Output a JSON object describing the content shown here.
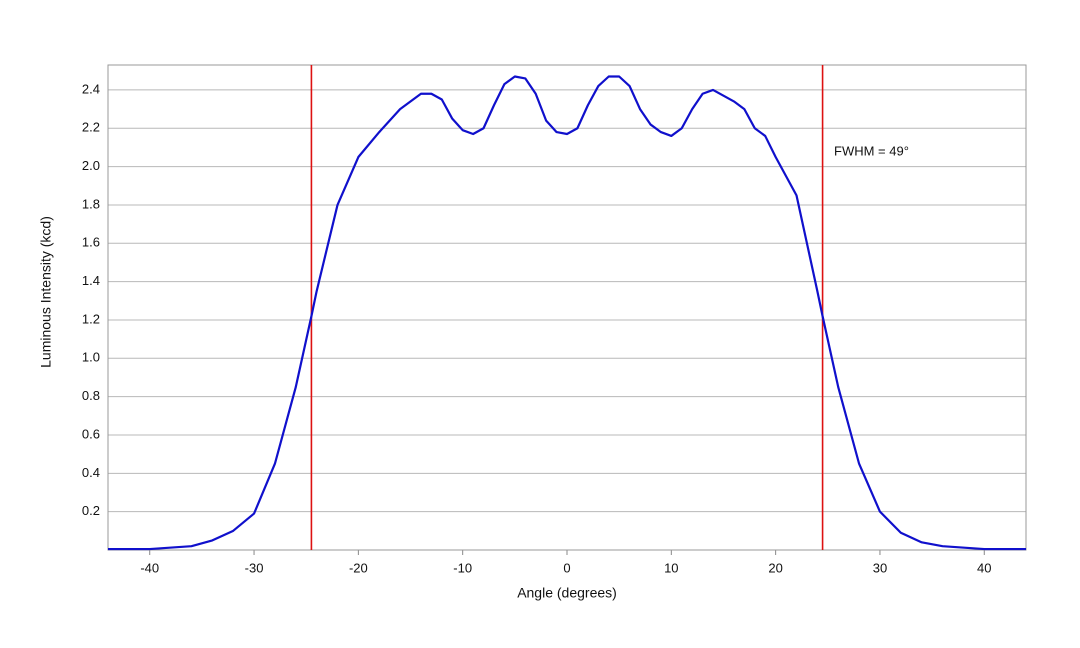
{
  "chart_data": {
    "type": "line",
    "xlabel": "Angle (degrees)",
    "ylabel": "Luminous Intensity (kcd)",
    "annotation": "FWHM = 49°",
    "x": [
      -44,
      -40,
      -36,
      -34,
      -32,
      -30,
      -28,
      -26,
      -24.5,
      -24,
      -22,
      -20,
      -18,
      -16,
      -14,
      -13,
      -12,
      -11,
      -10,
      -9,
      -8,
      -7,
      -6,
      -5,
      -4,
      -3,
      -2,
      -1,
      0,
      1,
      2,
      3,
      4,
      5,
      6,
      7,
      8,
      9,
      10,
      11,
      12,
      13,
      14,
      15,
      16,
      17,
      18,
      19,
      20,
      22,
      24,
      24.5,
      26,
      28,
      30,
      32,
      34,
      36,
      40,
      44
    ],
    "series": [
      {
        "color": "#1010cc",
        "values": [
          0.005,
          0.005,
          0.02,
          0.05,
          0.1,
          0.19,
          0.45,
          0.85,
          1.22,
          1.35,
          1.8,
          2.05,
          2.18,
          2.3,
          2.38,
          2.38,
          2.35,
          2.25,
          2.19,
          2.17,
          2.2,
          2.32,
          2.43,
          2.47,
          2.46,
          2.38,
          2.24,
          2.18,
          2.17,
          2.2,
          2.32,
          2.42,
          2.47,
          2.47,
          2.42,
          2.3,
          2.22,
          2.18,
          2.16,
          2.2,
          2.3,
          2.38,
          2.4,
          2.37,
          2.34,
          2.3,
          2.2,
          2.16,
          2.05,
          1.85,
          1.35,
          1.22,
          0.85,
          0.45,
          0.2,
          0.09,
          0.04,
          0.02,
          0.005,
          0.005
        ]
      }
    ],
    "vlines": [
      -24.5,
      24.5
    ],
    "vline_color": "#dd1111",
    "xlim": [
      -44,
      44
    ],
    "ylim": [
      0,
      2.53
    ],
    "xticks": [
      -40,
      -30,
      -20,
      -10,
      0,
      10,
      20,
      30,
      40
    ],
    "yticks": [
      0.2,
      0.4,
      0.6,
      0.8,
      {
        "value": 1,
        "label": "1.0"
      },
      1.2,
      1.4,
      1.6,
      1.8,
      {
        "value": 2,
        "label": "2.0"
      },
      2.2,
      2.4
    ],
    "grid": true
  }
}
